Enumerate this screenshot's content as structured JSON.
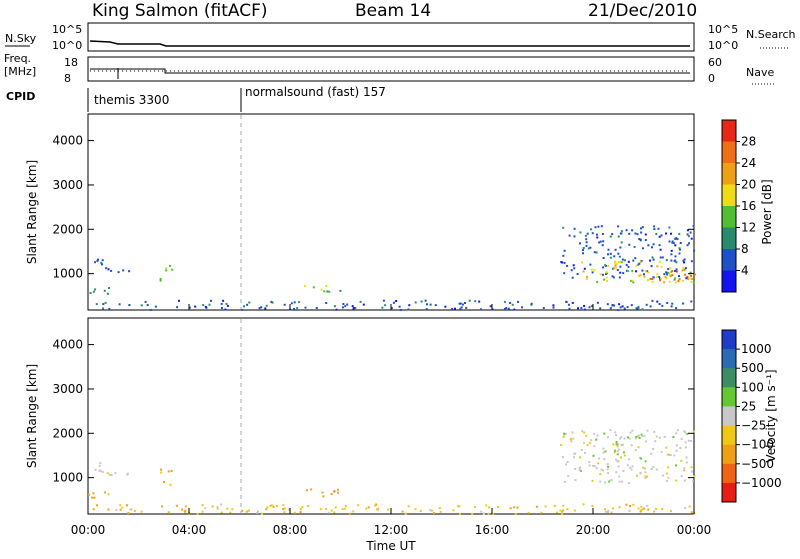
{
  "header": {
    "station": "King Salmon (fitACF)",
    "beam": "Beam 14",
    "date": "21/Dec/2010"
  },
  "top_panels": {
    "nsky_label": "N.Sky",
    "nsky_tick_hi": "10^5",
    "nsky_tick_lo": "10^0",
    "nsearch_label": "N.Search",
    "freq_label_1": "Freq.",
    "freq_label_2": "[MHz]",
    "freq_tick_hi": "18",
    "freq_tick_lo": "8",
    "nave_tick_hi": "60",
    "nave_tick_lo": "0",
    "nave_label": "Nave",
    "cpid_label": "CPID",
    "cpid_1": "themis 3300",
    "cpid_2": "normalsound (fast) 157"
  },
  "chart_data": [
    {
      "type": "heatmap",
      "name": "power",
      "ylabel": "Slant Range [km]",
      "xlabel": "",
      "xlim": [
        0,
        24
      ],
      "ylim": [
        180,
        4600
      ],
      "x_ticks": [
        "00:00",
        "04:00",
        "08:00",
        "12:00",
        "16:00",
        "20:00",
        "00:00"
      ],
      "y_ticks": [
        1000,
        2000,
        3000,
        4000
      ],
      "colorbar": {
        "label": "Power [dB]",
        "ticks": [
          4,
          8,
          12,
          16,
          20,
          24,
          28
        ],
        "colors": [
          "#1414f0",
          "#1e50c8",
          "#2a8a6e",
          "#50be32",
          "#f0dc14",
          "#f0a014",
          "#f06e14",
          "#e62814"
        ]
      },
      "regions": [
        {
          "x0": 0.0,
          "x1": 0.6,
          "y0": 1150,
          "y1": 1400,
          "level": 1
        },
        {
          "x0": 0.6,
          "x1": 1.6,
          "y0": 1050,
          "y1": 1150,
          "level": 1
        },
        {
          "x0": 0.0,
          "x1": 0.9,
          "y0": 550,
          "y1": 700,
          "level": 2
        },
        {
          "x0": 2.8,
          "x1": 3.3,
          "y0": 850,
          "y1": 1250,
          "level": 3
        },
        {
          "x0": 8.5,
          "x1": 10.0,
          "y0": 600,
          "y1": 780,
          "level": 3
        },
        {
          "x0": 18.7,
          "x1": 24.0,
          "y0": 900,
          "y1": 2100,
          "level": 1
        },
        {
          "x0": 19.5,
          "x1": 24.0,
          "y0": 800,
          "y1": 1300,
          "level": 4
        },
        {
          "x0": 21.8,
          "x1": 24.0,
          "y0": 850,
          "y1": 1100,
          "level": 6
        },
        {
          "x0": 0.0,
          "x1": 24.0,
          "y0": 200,
          "y1": 420,
          "level": 1
        }
      ]
    },
    {
      "type": "heatmap",
      "name": "velocity",
      "ylabel": "Slant Range [km]",
      "xlabel": "Time UT",
      "xlim": [
        0,
        24
      ],
      "ylim": [
        180,
        4600
      ],
      "x_ticks": [
        "00:00",
        "04:00",
        "08:00",
        "12:00",
        "16:00",
        "20:00",
        "00:00"
      ],
      "y_ticks": [
        1000,
        2000,
        3000,
        4000
      ],
      "colorbar": {
        "label": "Velocity [m s⁻¹]",
        "ticks": [
          "1000",
          "500",
          "100",
          "25",
          "−25",
          "−100",
          "−500",
          "−1000"
        ],
        "colors": [
          "#1e3cc8",
          "#2a6cb4",
          "#3c8c64",
          "#64c832",
          "#c8c8c8",
          "#f0c814",
          "#f0a014",
          "#f06414",
          "#e61e14"
        ]
      },
      "regions": [
        {
          "x0": 0.0,
          "x1": 0.6,
          "y0": 1150,
          "y1": 1400,
          "level": 4
        },
        {
          "x0": 0.6,
          "x1": 1.6,
          "y0": 1050,
          "y1": 1150,
          "level": 4
        },
        {
          "x0": 0.0,
          "x1": 0.9,
          "y0": 550,
          "y1": 700,
          "level": 6
        },
        {
          "x0": 2.8,
          "x1": 3.3,
          "y0": 850,
          "y1": 1250,
          "level": 6
        },
        {
          "x0": 8.5,
          "x1": 10.0,
          "y0": 600,
          "y1": 780,
          "level": 6
        },
        {
          "x0": 18.7,
          "x1": 24.0,
          "y0": 900,
          "y1": 2100,
          "level": 4
        },
        {
          "x0": 0.0,
          "x1": 24.0,
          "y0": 200,
          "y1": 420,
          "level": 5
        }
      ]
    }
  ]
}
